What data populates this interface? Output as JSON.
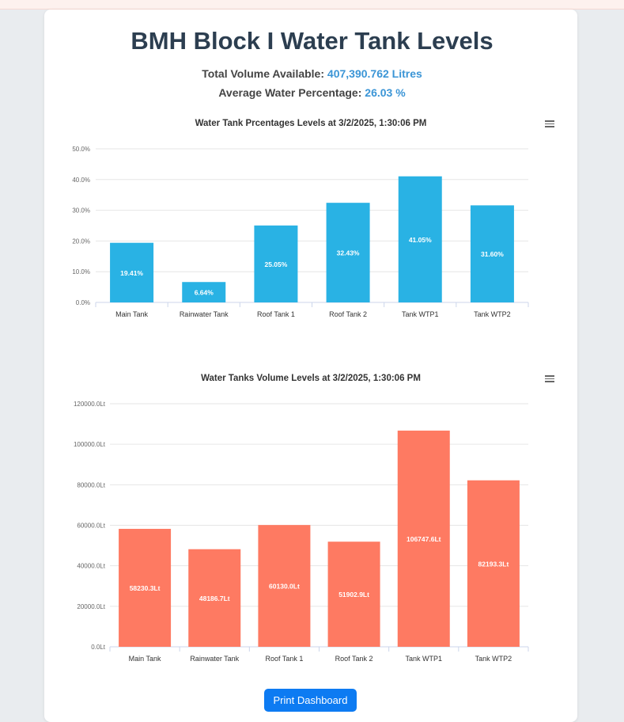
{
  "page": {
    "title": "BMH Block I Water Tank Levels",
    "total_volume_label": "Total Volume Available:",
    "total_volume_value": "407,390.762 Litres",
    "avg_pct_label": "Average Water Percentage:",
    "avg_pct_value": "26.03 %",
    "print_label": "Print Dashboard"
  },
  "chart_data": [
    {
      "type": "bar",
      "title": "Water Tank Prcentages Levels at 3/2/2025, 1:30:06 PM",
      "categories": [
        "Main Tank",
        "Rainwater Tank",
        "Roof Tank 1",
        "Roof Tank 2",
        "Tank WTP1",
        "Tank WTP2"
      ],
      "values": [
        19.41,
        6.64,
        25.05,
        32.43,
        41.05,
        31.6
      ],
      "data_labels": [
        "19.41%",
        "6.64%",
        "25.05%",
        "32.43%",
        "41.05%",
        "31.60%"
      ],
      "y_ticks": [
        0,
        10,
        20,
        30,
        40,
        50
      ],
      "y_tick_labels": [
        "0.0%",
        "10.0%",
        "20.0%",
        "30.0%",
        "40.0%",
        "50.0%"
      ],
      "ylim": [
        0,
        50
      ],
      "color": "#29b2e4",
      "grid": true,
      "menu_icon": "hamburger-menu-icon"
    },
    {
      "type": "bar",
      "title": "Water Tanks Volume Levels at 3/2/2025, 1:30:06 PM",
      "categories": [
        "Main Tank",
        "Rainwater Tank",
        "Roof Tank 1",
        "Roof Tank 2",
        "Tank WTP1",
        "Tank WTP2"
      ],
      "values": [
        58230.3,
        48186.7,
        60130.0,
        51902.9,
        106747.6,
        82193.3
      ],
      "data_labels": [
        "58230.3Lt",
        "48186.7Lt",
        "60130.0Lt",
        "51902.9Lt",
        "106747.6Lt",
        "82193.3Lt"
      ],
      "y_ticks": [
        0,
        20000,
        40000,
        60000,
        80000,
        100000,
        120000
      ],
      "y_tick_labels": [
        "0.0Lt",
        "20000.0Lt",
        "40000.0Lt",
        "60000.0Lt",
        "80000.0Lt",
        "100000.0Lt",
        "120000.0Lt"
      ],
      "ylim": [
        0,
        120000
      ],
      "color": "#fe7a62",
      "grid": true,
      "menu_icon": "hamburger-menu-icon"
    }
  ]
}
